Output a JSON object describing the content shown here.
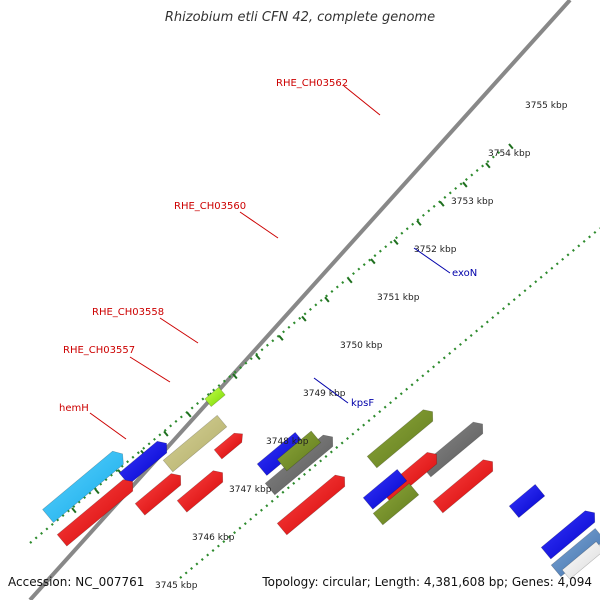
{
  "title": "Rhizobium etli CFN 42, complete genome",
  "footer": {
    "accession": "Accession: NC_007761",
    "summary": "Topology: circular; Length: 4,381,608 bp; Genes: 4,094"
  },
  "colors": {
    "label_red": "#cc0000",
    "label_blue": "#0000aa",
    "tick": "#2e8b2e",
    "backbone": "#888888"
  },
  "scale": {
    "ticks": [
      "3745 kbp",
      "3746 kbp",
      "3747 kbp",
      "3748 kbp",
      "3749 kbp",
      "3750 kbp",
      "3751 kbp",
      "3752 kbp",
      "3753 kbp",
      "3754 kbp",
      "3755 kbp"
    ]
  },
  "gene_labels": [
    {
      "text": "RHE_CH03562",
      "color": "#cc0000"
    },
    {
      "text": "RHE_CH03560",
      "color": "#cc0000"
    },
    {
      "text": "RHE_CH03558",
      "color": "#cc0000"
    },
    {
      "text": "RHE_CH03557",
      "color": "#cc0000"
    },
    {
      "text": "hemH",
      "color": "#cc0000"
    },
    {
      "text": "exoN",
      "color": "#0000aa"
    },
    {
      "text": "kpsF",
      "color": "#0000aa"
    }
  ]
}
